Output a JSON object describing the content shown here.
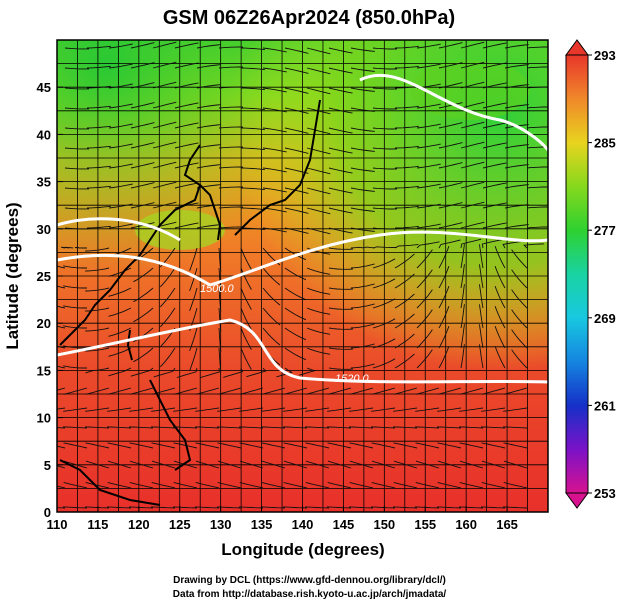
{
  "title": "GSM 06Z26Apr2024 (850.0hPa)",
  "xlabel": "Longitude (degrees)",
  "ylabel": "Latitude  (degrees)",
  "credits": {
    "line1": "Drawing by DCL (https://www.gfd-dennou.org/library/dcl/)",
    "line2": "Data from http://database.rish.kyoto-u.ac.jp/arch/jmadata/"
  },
  "map": {
    "lon_range": [
      110,
      170
    ],
    "lat_range": [
      0,
      50
    ],
    "x_ticks": [
      110,
      115,
      120,
      125,
      130,
      135,
      140,
      145,
      150,
      155,
      160,
      165
    ],
    "y_ticks": [
      0,
      5,
      10,
      15,
      20,
      25,
      30,
      35,
      40,
      45
    ],
    "contour_labels": [
      "1500.0",
      "1520.0"
    ],
    "field": "temperature (K)",
    "overlay": "wind streamlines",
    "grid": true
  },
  "colorbar": {
    "min": 253,
    "max": 293,
    "tick_labels": [
      "293",
      "285",
      "277",
      "269",
      "261",
      "253"
    ],
    "colors": [
      "#d8128f",
      "#5b12c8",
      "#1535d8",
      "#1aa8e8",
      "#19d3a2",
      "#2ed130",
      "#86d81d",
      "#d8e81e",
      "#f0a02a",
      "#f0682a",
      "#e8362a"
    ]
  }
}
